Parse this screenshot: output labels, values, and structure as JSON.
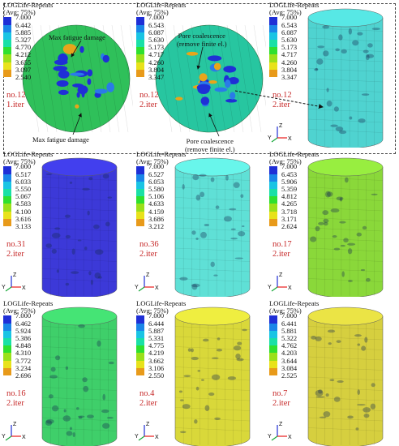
{
  "legend_title": "LOGLife-Repeats",
  "legend_avg": "(Avg: 75%)",
  "legend_colors": [
    "#1f2fd6",
    "#1a86e8",
    "#19c4e4",
    "#19e0a6",
    "#2fe02f",
    "#9be01a",
    "#e8e21a",
    "#e89a1a",
    "#e81a1a"
  ],
  "axis_labels": {
    "x": "X",
    "y": "Y",
    "z": "Z"
  },
  "annotations": {
    "max_fatigue_top": "Max fatigue damage",
    "max_fatigue_bottom": "Max fatigue damage",
    "pore_coalescence_top_1": "Pore coalescence",
    "pore_coalescence_top_2": "(remove finite el.)",
    "pore_coalescence_bottom_1": "Pore coalescence",
    "pore_coalescence_bottom_2": "(remove finite el.)"
  },
  "panels": [
    {
      "no": "no.12",
      "iter": "1.iter",
      "ticks": [
        "7.000",
        "6.442",
        "5.885",
        "5.327",
        "4.770",
        "4.212",
        "3.655",
        "3.097",
        "2.540"
      ],
      "view": "top",
      "base": "#2fc05a"
    },
    {
      "no": "no.12",
      "iter": "2.iter",
      "ticks": [
        "7.000",
        "6.543",
        "6.087",
        "5.630",
        "5.173",
        "4.717",
        "4.260",
        "3.804",
        "3.347"
      ],
      "view": "top",
      "base": "#27c6a0"
    },
    {
      "no": "no.12",
      "iter": "2.iter",
      "ticks": [
        "7.000",
        "6.543",
        "6.087",
        "5.630",
        "5.173",
        "4.717",
        "4.260",
        "3.804",
        "3.347"
      ],
      "view": "cyl",
      "base": "#4fd3d0"
    },
    {
      "no": "no.31",
      "iter": "2.iter",
      "ticks": [
        "7.000",
        "6.517",
        "6.033",
        "5.550",
        "5.067",
        "4.583",
        "4.100",
        "3.616",
        "3.133"
      ],
      "view": "cyl",
      "base": "#3c39d8"
    },
    {
      "no": "no.36",
      "iter": "2.iter",
      "ticks": [
        "7.000",
        "6.527",
        "6.053",
        "5.580",
        "5.106",
        "4.633",
        "4.159",
        "3.686",
        "3.212"
      ],
      "view": "cyl",
      "base": "#5fe0d6"
    },
    {
      "no": "no.17",
      "iter": "2.iter",
      "ticks": [
        "7.000",
        "6.453",
        "5.906",
        "5.359",
        "4.812",
        "4.265",
        "3.718",
        "3.171",
        "2.624"
      ],
      "view": "cyl",
      "base": "#8ad83a"
    },
    {
      "no": "no.16",
      "iter": "2.iter",
      "ticks": [
        "7.000",
        "6.462",
        "5.924",
        "5.386",
        "4.848",
        "4.310",
        "3.772",
        "3.234",
        "2.696"
      ],
      "view": "cyl",
      "base": "#3fcf6a"
    },
    {
      "no": "no.4",
      "iter": "2.iter",
      "ticks": [
        "7.000",
        "6.444",
        "5.887",
        "5.331",
        "4.775",
        "4.219",
        "3.662",
        "3.106",
        "2.550"
      ],
      "view": "cyl",
      "base": "#d9d83a"
    },
    {
      "no": "no.7",
      "iter": "2.iter",
      "ticks": [
        "7.000",
        "6.441",
        "5.881",
        "5.322",
        "4.762",
        "4.203",
        "3.644",
        "3.084",
        "2.525"
      ],
      "view": "cyl",
      "base": "#d6cf3f"
    }
  ]
}
